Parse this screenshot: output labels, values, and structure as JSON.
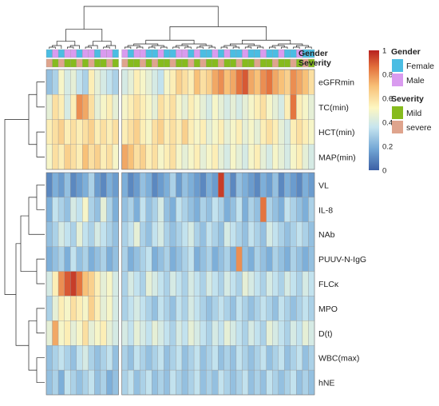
{
  "chart_data": {
    "type": "heatmap",
    "title": "",
    "annotation_tracks": [
      {
        "name": "Gender",
        "legend_title": "Gender",
        "levels": [
          {
            "label": "Female",
            "color": "#4bbde3"
          },
          {
            "label": "Male",
            "color": "#d99bef"
          }
        ]
      },
      {
        "name": "Severity",
        "legend_title": "Severity",
        "levels": [
          {
            "label": "Mild",
            "color": "#86bb1e"
          },
          {
            "label": "severe",
            "color": "#dfa48d"
          }
        ]
      }
    ],
    "row_labels_group1": [
      "eGFRmin",
      "TC(min)",
      "HCT(min)",
      "MAP(min)"
    ],
    "row_labels_group2": [
      "VL",
      "IL-8",
      "NAb",
      "PUUV-N-IgG",
      "FLCκ",
      "MPO",
      "D(t)",
      "WBC(max)",
      "hNE"
    ],
    "columns": 44,
    "column_split_after": 12,
    "colorbar": {
      "min": 0,
      "max": 1,
      "ticks": [
        "0",
        "0.2",
        "0.4",
        "0.6",
        "0.8",
        "1"
      ],
      "colors": [
        "#3c5fa5",
        "#74a8d6",
        "#c7e5ef",
        "#fdf7c2",
        "#f8c178",
        "#e3703c",
        "#b8201f"
      ]
    },
    "values": [
      [
        0.25,
        0.3,
        0.5,
        0.4,
        0.45,
        0.35,
        0.3,
        0.55,
        0.45,
        0.4,
        0.35,
        0.3,
        0.4,
        0.45,
        0.55,
        0.5,
        0.45,
        0.4,
        0.35,
        0.5,
        0.55,
        0.65,
        0.6,
        0.55,
        0.7,
        0.6,
        0.65,
        0.75,
        0.8,
        0.7,
        0.75,
        0.85,
        0.9,
        0.75,
        0.7,
        0.8,
        0.85,
        0.75,
        0.7,
        0.65,
        0.8,
        0.75,
        0.7,
        0.6
      ],
      [
        0.45,
        0.6,
        0.55,
        0.4,
        0.55,
        0.8,
        0.75,
        0.6,
        0.45,
        0.5,
        0.55,
        0.45,
        0.5,
        0.55,
        0.6,
        0.55,
        0.5,
        0.45,
        0.6,
        0.55,
        0.6,
        0.5,
        0.45,
        0.55,
        0.5,
        0.45,
        0.4,
        0.5,
        0.45,
        0.4,
        0.45,
        0.4,
        0.45,
        0.5,
        0.55,
        0.6,
        0.5,
        0.45,
        0.4,
        0.55,
        0.85,
        0.55,
        0.5,
        0.45
      ],
      [
        0.55,
        0.6,
        0.65,
        0.55,
        0.6,
        0.55,
        0.6,
        0.65,
        0.55,
        0.6,
        0.55,
        0.6,
        0.55,
        0.6,
        0.65,
        0.55,
        0.5,
        0.6,
        0.65,
        0.55,
        0.6,
        0.55,
        0.65,
        0.55,
        0.5,
        0.55,
        0.45,
        0.5,
        0.55,
        0.45,
        0.5,
        0.55,
        0.45,
        0.5,
        0.45,
        0.55,
        0.6,
        0.55,
        0.45,
        0.4,
        0.55,
        0.6,
        0.55,
        0.5
      ],
      [
        0.5,
        0.6,
        0.55,
        0.65,
        0.6,
        0.55,
        0.7,
        0.6,
        0.65,
        0.55,
        0.6,
        0.5,
        0.75,
        0.7,
        0.6,
        0.65,
        0.55,
        0.6,
        0.5,
        0.55,
        0.6,
        0.5,
        0.45,
        0.5,
        0.55,
        0.45,
        0.5,
        0.55,
        0.45,
        0.4,
        0.5,
        0.45,
        0.4,
        0.5,
        0.55,
        0.45,
        0.4,
        0.5,
        0.45,
        0.4,
        0.5,
        0.55,
        0.45,
        0.4
      ],
      [
        0.1,
        0.2,
        0.15,
        0.25,
        0.1,
        0.15,
        0.2,
        0.3,
        0.15,
        0.1,
        0.2,
        0.15,
        0.2,
        0.1,
        0.15,
        0.25,
        0.2,
        0.1,
        0.15,
        0.2,
        0.3,
        0.15,
        0.25,
        0.2,
        0.15,
        0.1,
        0.2,
        0.15,
        0.95,
        0.2,
        0.1,
        0.25,
        0.2,
        0.15,
        0.1,
        0.2,
        0.15,
        0.25,
        0.1,
        0.2,
        0.15,
        0.1,
        0.2,
        0.15
      ],
      [
        0.2,
        0.35,
        0.3,
        0.25,
        0.4,
        0.35,
        0.5,
        0.3,
        0.25,
        0.45,
        0.3,
        0.2,
        0.25,
        0.3,
        0.2,
        0.35,
        0.25,
        0.3,
        0.4,
        0.25,
        0.2,
        0.35,
        0.3,
        0.25,
        0.2,
        0.3,
        0.25,
        0.35,
        0.3,
        0.2,
        0.25,
        0.35,
        0.2,
        0.3,
        0.25,
        0.85,
        0.3,
        0.25,
        0.2,
        0.35,
        0.3,
        0.25,
        0.2,
        0.3
      ],
      [
        0.25,
        0.3,
        0.4,
        0.35,
        0.3,
        0.45,
        0.35,
        0.3,
        0.4,
        0.35,
        0.3,
        0.25,
        0.3,
        0.35,
        0.45,
        0.3,
        0.25,
        0.35,
        0.4,
        0.3,
        0.25,
        0.3,
        0.35,
        0.4,
        0.3,
        0.25,
        0.35,
        0.3,
        0.25,
        0.4,
        0.35,
        0.3,
        0.25,
        0.35,
        0.3,
        0.25,
        0.4,
        0.35,
        0.3,
        0.25,
        0.3,
        0.35,
        0.3,
        0.25
      ],
      [
        0.2,
        0.25,
        0.3,
        0.2,
        0.35,
        0.25,
        0.3,
        0.2,
        0.25,
        0.3,
        0.2,
        0.25,
        0.3,
        0.2,
        0.25,
        0.3,
        0.35,
        0.2,
        0.25,
        0.3,
        0.2,
        0.25,
        0.3,
        0.35,
        0.2,
        0.25,
        0.3,
        0.2,
        0.25,
        0.3,
        0.2,
        0.8,
        0.25,
        0.2,
        0.3,
        0.25,
        0.2,
        0.3,
        0.25,
        0.2,
        0.3,
        0.25,
        0.2,
        0.25
      ],
      [
        0.4,
        0.55,
        0.8,
        0.9,
        0.95,
        0.85,
        0.7,
        0.65,
        0.55,
        0.45,
        0.5,
        0.4,
        0.3,
        0.4,
        0.35,
        0.3,
        0.45,
        0.4,
        0.35,
        0.3,
        0.4,
        0.35,
        0.3,
        0.4,
        0.35,
        0.3,
        0.4,
        0.35,
        0.3,
        0.4,
        0.35,
        0.3,
        0.45,
        0.4,
        0.35,
        0.3,
        0.4,
        0.35,
        0.3,
        0.4,
        0.35,
        0.3,
        0.4,
        0.35
      ],
      [
        0.3,
        0.45,
        0.55,
        0.5,
        0.6,
        0.55,
        0.5,
        0.65,
        0.55,
        0.45,
        0.5,
        0.4,
        0.3,
        0.35,
        0.4,
        0.35,
        0.3,
        0.25,
        0.35,
        0.3,
        0.25,
        0.35,
        0.3,
        0.4,
        0.35,
        0.3,
        0.25,
        0.3,
        0.35,
        0.3,
        0.25,
        0.35,
        0.3,
        0.25,
        0.3,
        0.35,
        0.3,
        0.25,
        0.35,
        0.3,
        0.25,
        0.3,
        0.35,
        0.3
      ],
      [
        0.45,
        0.75,
        0.5,
        0.55,
        0.45,
        0.5,
        0.6,
        0.45,
        0.5,
        0.55,
        0.45,
        0.4,
        0.4,
        0.35,
        0.45,
        0.4,
        0.35,
        0.45,
        0.4,
        0.35,
        0.3,
        0.4,
        0.35,
        0.45,
        0.4,
        0.35,
        0.3,
        0.4,
        0.35,
        0.45,
        0.4,
        0.35,
        0.3,
        0.4,
        0.35,
        0.3,
        0.45,
        0.4,
        0.35,
        0.3,
        0.4,
        0.35,
        0.45,
        0.4
      ],
      [
        0.25,
        0.3,
        0.35,
        0.3,
        0.25,
        0.35,
        0.4,
        0.3,
        0.25,
        0.3,
        0.35,
        0.25,
        0.3,
        0.25,
        0.35,
        0.3,
        0.25,
        0.3,
        0.35,
        0.25,
        0.3,
        0.35,
        0.25,
        0.3,
        0.35,
        0.25,
        0.3,
        0.35,
        0.25,
        0.3,
        0.25,
        0.35,
        0.3,
        0.25,
        0.3,
        0.35,
        0.25,
        0.3,
        0.35,
        0.25,
        0.3,
        0.35,
        0.25,
        0.3
      ],
      [
        0.25,
        0.3,
        0.2,
        0.35,
        0.3,
        0.25,
        0.3,
        0.35,
        0.25,
        0.3,
        0.2,
        0.25,
        0.3,
        0.35,
        0.25,
        0.3,
        0.35,
        0.25,
        0.3,
        0.25,
        0.35,
        0.3,
        0.25,
        0.3,
        0.35,
        0.25,
        0.3,
        0.25,
        0.35,
        0.3,
        0.25,
        0.3,
        0.35,
        0.25,
        0.3,
        0.25,
        0.35,
        0.3,
        0.25,
        0.3,
        0.35,
        0.25,
        0.3,
        0.25
      ]
    ],
    "gender": [
      0,
      1,
      0,
      1,
      1,
      0,
      1,
      1,
      0,
      1,
      1,
      0,
      1,
      0,
      1,
      1,
      0,
      0,
      1,
      0,
      0,
      1,
      1,
      0,
      1,
      0,
      0,
      1,
      0,
      1,
      0,
      0,
      1,
      0,
      0,
      1,
      0,
      0,
      1,
      0,
      0,
      1,
      0,
      0
    ],
    "severity": [
      1,
      0,
      1,
      0,
      0,
      1,
      0,
      1,
      0,
      0,
      1,
      0,
      1,
      0,
      0,
      1,
      0,
      1,
      0,
      0,
      1,
      0,
      0,
      1,
      0,
      1,
      0,
      0,
      1,
      0,
      0,
      1,
      0,
      0,
      1,
      0,
      0,
      1,
      0,
      0,
      1,
      0,
      1,
      0
    ]
  }
}
